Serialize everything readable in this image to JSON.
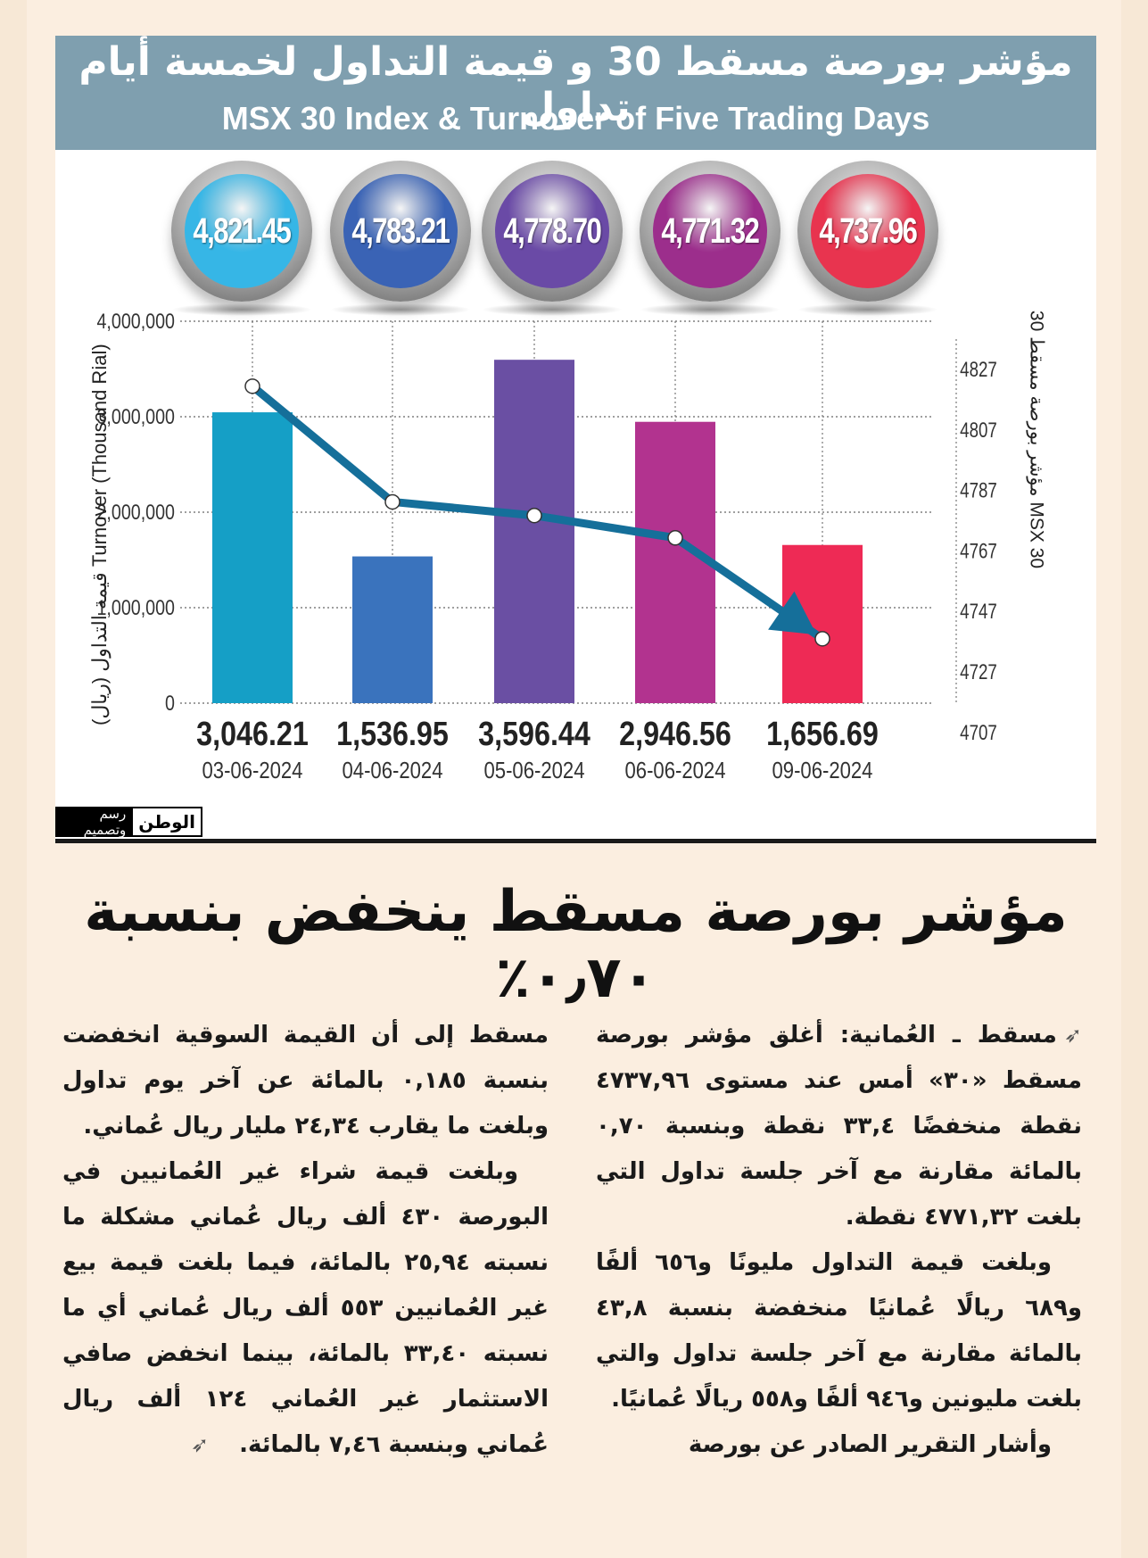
{
  "header": {
    "title_ar": "مؤشر بورصة مسقط 30 و قيمة التداول لخمسة أيام تداول",
    "title_en": "MSX 30 Index & Turnover of Five Trading Days"
  },
  "index_orbs": [
    {
      "value": "4,821.45",
      "color": "#36b6e6"
    },
    {
      "value": "4,783.21",
      "color": "#3a63b5"
    },
    {
      "value": "4,778.70",
      "color": "#6a4aa6"
    },
    {
      "value": "4,771.32",
      "color": "#9c2e8c"
    },
    {
      "value": "4,737.96",
      "color": "#e8344f"
    }
  ],
  "chart_data": {
    "type": "bar",
    "categories": [
      "03-06-2024",
      "04-06-2024",
      "05-06-2024",
      "06-06-2024",
      "09-06-2024"
    ],
    "bar_labels": [
      "3,046.21",
      "1,536.95",
      "3,596.44",
      "2,946.56",
      "1,656.69"
    ],
    "series": [
      {
        "name": "Turnover (Thousand Rial)",
        "values": [
          3046210,
          1536950,
          3596440,
          2946560,
          1656690
        ],
        "colors": [
          "#159fc6",
          "#3a73bd",
          "#6a4fa3",
          "#b2338f",
          "#ee2a55"
        ]
      },
      {
        "name": "MSX 30",
        "type": "line",
        "values": [
          4821.45,
          4783.21,
          4778.7,
          4771.32,
          4737.96
        ],
        "color": "#156f9a"
      }
    ],
    "y_left": {
      "label": "قيمة التداول (ريال)  Turnover (Thousand Rial)",
      "ticks": [
        "4,000,000",
        "3,000,000",
        "2,000,000",
        "1,000,000",
        "0"
      ],
      "ylim": [
        0,
        4000000
      ]
    },
    "y_right": {
      "label": "مؤشر بورصة مسقط 30  MSX 30",
      "ticks": [
        "4827",
        "4807",
        "4787",
        "4767",
        "4747",
        "4727",
        "4707"
      ],
      "ylim": [
        4707,
        4827
      ]
    },
    "grid": true
  },
  "logo": {
    "name": "الوطن",
    "tag": "رسم وتصميم"
  },
  "article": {
    "headline": "مؤشر بورصة مسقط ينخفض بنسبة ٠٫٧٠٪",
    "col_right": [
      "مسقط ـ العُمانية: أغلق مؤشر بورصة مسقط «٣٠» أمس عند مستوى ٤٧٣٧,٩٦ نقطة منخفضًا ٣٣,٤ نقطة وبنسبة ٠,٧٠ بالمائة مقارنة مع آخر جلسة تداول التي بلغت ٤٧٧١,٣٢ نقطة.",
      "وبلغت قيمة التداول مليونًا و٦٥٦ ألفًا و٦٨٩ ريالًا عُمانيًا منخفضة بنسبة ٤٣,٨ بالمائة مقارنة مع آخر جلسة تداول والتي بلغت مليونين و٩٤٦ ألفًا و٥٥٨ ريالًا عُمانيًا.",
      "وأشار التقرير الصادر عن بورصة"
    ],
    "col_left": [
      "مسقط إلى أن القيمة السوقية انخفضت بنسبة ٠,١٨٥ بالمائة عن آخر يوم تداول وبلغت ما يقارب ٢٤,٣٤ مليار ريال عُماني.",
      "وبلغت قيمة شراء غير العُمانيين في البورصة ٤٣٠ ألف ريال عُماني مشكلة ما نسبته ٢٥,٩٤ بالمائة، فيما بلغت قيمة بيع غير العُمانيين ٥٥٣ ألف ريال عُماني أي ما نسبته ٣٣,٤٠ بالمائة، بينما انخفض صافي الاستثمار غير العُماني ١٢٤ ألف ريال عُماني وبنسبة ٧,٤٦ بالمائة."
    ]
  }
}
